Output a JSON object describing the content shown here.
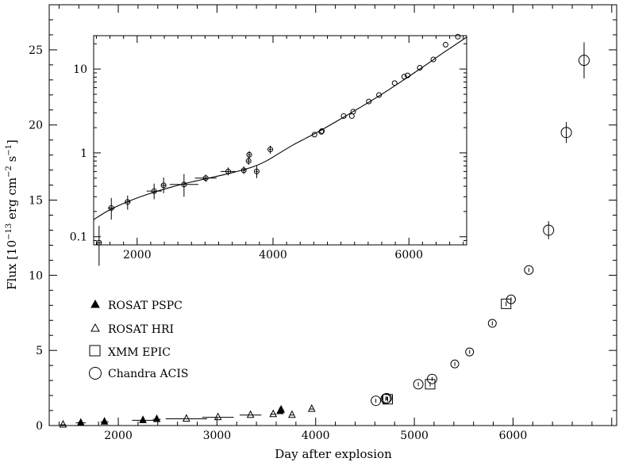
{
  "chart_data": [
    {
      "type": "scatter",
      "xlabel": "Day after explosion",
      "ylabel_main": "Flux [10",
      "ylabel_exp1": "−13",
      "ylabel_mid": " erg cm",
      "ylabel_exp2": "−2",
      "ylabel_s": " s",
      "ylabel_exp3": "−1",
      "ylabel_close": "]",
      "xlim": [
        1300,
        7050
      ],
      "ylim": [
        0,
        28
      ],
      "x_ticks": [
        2000,
        3000,
        4000,
        5000,
        6000
      ],
      "y_ticks": [
        0,
        5,
        10,
        15,
        20,
        25
      ],
      "legend": {
        "placement": "middle-left",
        "entries": [
          {
            "label": "ROSAT PSPC",
            "marker": "filled-triangle"
          },
          {
            "label": "ROSAT HRI",
            "marker": "open-triangle"
          },
          {
            "label": "XMM EPIC",
            "marker": "open-square"
          },
          {
            "label": "Chandra ACIS",
            "marker": "open-circle"
          }
        ]
      },
      "series": [
        {
          "name": "ROSAT PSPC",
          "marker": "filled-triangle",
          "points": [
            {
              "x": 1620,
              "y": 0.18,
              "xerr": 50
            },
            {
              "x": 1860,
              "y": 0.25,
              "xerr": 40
            },
            {
              "x": 2250,
              "y": 0.35,
              "xerr": 110
            },
            {
              "x": 2390,
              "y": 0.42,
              "xerr": 40
            },
            {
              "x": 3640,
              "y": 0.95,
              "xerr": 20
            },
            {
              "x": 3650,
              "y": 1.05,
              "xerr": 20
            }
          ]
        },
        {
          "name": "ROSAT HRI",
          "marker": "open-triangle",
          "points": [
            {
              "x": 1440,
              "y": 0.05,
              "xerr": 30
            },
            {
              "x": 2690,
              "y": 0.45,
              "xerr": 210
            },
            {
              "x": 3010,
              "y": 0.55,
              "xerr": 160
            },
            {
              "x": 3340,
              "y": 0.7,
              "xerr": 110
            },
            {
              "x": 3570,
              "y": 0.75,
              "xerr": 30
            },
            {
              "x": 3760,
              "y": 0.7,
              "xerr": 20
            },
            {
              "x": 3960,
              "y": 1.1,
              "xerr": 20
            }
          ]
        },
        {
          "name": "XMM EPIC",
          "marker": "open-square",
          "points": [
            {
              "x": 4730,
              "y": 1.75
            },
            {
              "x": 5160,
              "y": 2.75
            },
            {
              "x": 5930,
              "y": 8.1
            }
          ]
        },
        {
          "name": "Chandra ACIS",
          "marker": "open-circle",
          "points": [
            {
              "x": 4610,
              "y": 1.65,
              "size": 12
            },
            {
              "x": 4710,
              "y": 1.78,
              "size": 12
            },
            {
              "x": 4720,
              "y": 1.82,
              "size": 12
            },
            {
              "x": 5040,
              "y": 2.75,
              "size": 12
            },
            {
              "x": 5180,
              "y": 3.1,
              "size": 12
            },
            {
              "x": 5410,
              "y": 4.1,
              "size": 10
            },
            {
              "x": 5560,
              "y": 4.9,
              "size": 10
            },
            {
              "x": 5790,
              "y": 6.8,
              "size": 10
            },
            {
              "x": 5980,
              "y": 8.4,
              "size": 11
            },
            {
              "x": 6160,
              "y": 10.35,
              "size": 11
            },
            {
              "x": 6360,
              "y": 13.0,
              "size": 13,
              "yerr": 0.6
            },
            {
              "x": 6540,
              "y": 19.5,
              "size": 13,
              "yerr": 0.7
            },
            {
              "x": 6720,
              "y": 24.3,
              "size": 13,
              "yerr": 1.2
            }
          ]
        }
      ]
    },
    {
      "type": "scatter",
      "inset": true,
      "yscale": "log",
      "xlim": [
        1360,
        6850
      ],
      "ylim": [
        0.08,
        25
      ],
      "x_ticks": [
        2000,
        4000,
        6000
      ],
      "y_ticks": [
        0.1,
        1,
        10
      ],
      "y_tick_labels": [
        "0.1",
        "1",
        "10"
      ],
      "points": [
        {
          "x": 1440,
          "y": 0.085,
          "xerr": 30,
          "yerr_lo": 0.04,
          "yerr_hi": 0.05
        },
        {
          "x": 1620,
          "y": 0.22,
          "xerr": 50,
          "yerr_lo": 0.06,
          "yerr_hi": 0.07
        },
        {
          "x": 1860,
          "y": 0.26,
          "xerr": 40,
          "yerr_lo": 0.05,
          "yerr_hi": 0.05
        },
        {
          "x": 2250,
          "y": 0.35,
          "xerr": 110,
          "yerr_lo": 0.07,
          "yerr_hi": 0.08
        },
        {
          "x": 2390,
          "y": 0.41,
          "xerr": 40,
          "yerr_lo": 0.08,
          "yerr_hi": 0.1
        },
        {
          "x": 2690,
          "y": 0.42,
          "xerr": 210,
          "yerr_lo": 0.12,
          "yerr_hi": 0.14
        },
        {
          "x": 3010,
          "y": 0.5,
          "xerr": 160,
          "yerr_lo": 0.05,
          "yerr_hi": 0.05
        },
        {
          "x": 3340,
          "y": 0.6,
          "xerr": 110,
          "yerr_lo": 0.06,
          "yerr_hi": 0.07
        },
        {
          "x": 3570,
          "y": 0.62,
          "xerr": 30,
          "yerr_lo": 0.06,
          "yerr_hi": 0.07
        },
        {
          "x": 3640,
          "y": 0.8,
          "xerr": 20,
          "yerr_lo": 0.08,
          "yerr_hi": 0.08
        },
        {
          "x": 3650,
          "y": 0.95,
          "xerr": 20,
          "yerr_lo": 0.09,
          "yerr_hi": 0.1
        },
        {
          "x": 3760,
          "y": 0.6,
          "xerr": 20,
          "yerr_lo": 0.1,
          "yerr_hi": 0.1
        },
        {
          "x": 3960,
          "y": 1.1,
          "xerr": 20,
          "yerr_lo": 0.12,
          "yerr_hi": 0.12
        },
        {
          "x": 4610,
          "y": 1.65
        },
        {
          "x": 4710,
          "y": 1.78
        },
        {
          "x": 4720,
          "y": 1.82
        },
        {
          "x": 5040,
          "y": 2.75
        },
        {
          "x": 5160,
          "y": 2.75
        },
        {
          "x": 5180,
          "y": 3.1
        },
        {
          "x": 5410,
          "y": 4.1
        },
        {
          "x": 5560,
          "y": 4.9
        },
        {
          "x": 5790,
          "y": 6.8
        },
        {
          "x": 5930,
          "y": 8.1
        },
        {
          "x": 5980,
          "y": 8.4
        },
        {
          "x": 6160,
          "y": 10.35
        },
        {
          "x": 6360,
          "y": 13.0
        },
        {
          "x": 6540,
          "y": 19.5
        },
        {
          "x": 6720,
          "y": 24.3
        }
      ],
      "fit_curve": {
        "x": [
          1360,
          1600,
          1900,
          2200,
          2500,
          2800,
          3100,
          3400,
          3700,
          3900,
          4100,
          4300,
          4500,
          4700,
          5000,
          5300,
          5600,
          5900,
          6200,
          6500,
          6850
        ],
        "y": [
          0.16,
          0.21,
          0.27,
          0.33,
          0.39,
          0.45,
          0.51,
          0.58,
          0.68,
          0.8,
          1.0,
          1.25,
          1.52,
          1.85,
          2.55,
          3.55,
          5.0,
          7.2,
          10.5,
          15.5,
          24.0
        ]
      }
    }
  ]
}
